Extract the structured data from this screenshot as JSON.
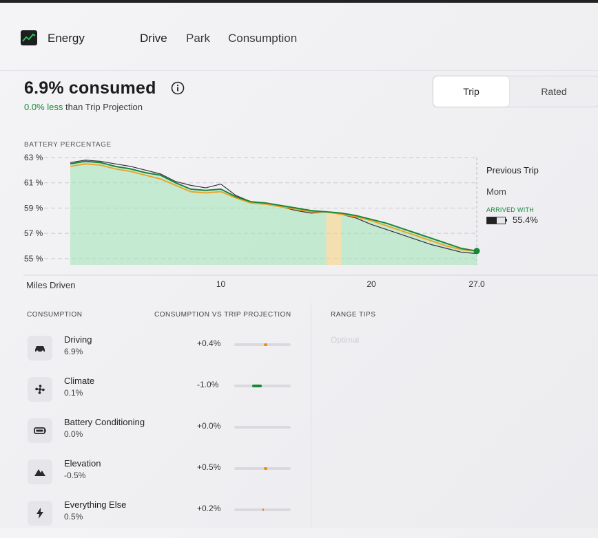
{
  "header": {
    "app_title": "Energy",
    "tabs": [
      {
        "label": "Drive",
        "active": true
      },
      {
        "label": "Park",
        "active": false
      },
      {
        "label": "Consumption",
        "active": false
      }
    ]
  },
  "summary": {
    "consumed": "6.9% consumed",
    "delta_value": "0.0% less",
    "delta_suffix": "than Trip Projection"
  },
  "segmented": {
    "trip": "Trip",
    "rated": "Rated"
  },
  "chart": {
    "title": "BATTERY PERCENTAGE",
    "y_ticks": [
      "63 %",
      "61 %",
      "59 %",
      "57 %",
      "55 %"
    ],
    "x_axis_label": "Miles Driven",
    "x_ticks": [
      "10",
      "20",
      "27.0"
    ],
    "legend": {
      "title": "Previous Trip",
      "destination": "Mom",
      "arrived_label": "ARRIVED WITH",
      "arrived_value": "55.4%",
      "battery_level": 0.55
    },
    "colors": {
      "actual": "#17873a",
      "projection_high": "#f0a020",
      "previous": "#3a2d3f",
      "fill_over": "#f7d27a",
      "fill_under": "#9ee3b4"
    }
  },
  "chart_data": {
    "type": "line",
    "xlabel": "Miles Driven",
    "ylabel": "BATTERY PERCENTAGE",
    "xlim": [
      0,
      27.0
    ],
    "ylim": [
      54.5,
      63
    ],
    "series": [
      {
        "name": "",
        "kind": "actual",
        "x": [
          0,
          1,
          2,
          3,
          4,
          5,
          6,
          7,
          8,
          9,
          10,
          11,
          12,
          13,
          14,
          15,
          16,
          17,
          18,
          19,
          20,
          21,
          22,
          23,
          24,
          25,
          26,
          27.0
        ],
        "y": [
          62.5,
          62.7,
          62.6,
          62.3,
          62.1,
          61.8,
          61.6,
          61.0,
          60.5,
          60.4,
          60.5,
          59.9,
          59.5,
          59.4,
          59.2,
          59.0,
          58.8,
          58.7,
          58.6,
          58.4,
          58.1,
          57.8,
          57.4,
          57.0,
          56.6,
          56.2,
          55.8,
          55.6
        ]
      },
      {
        "name": "",
        "kind": "previous",
        "x": [
          0,
          1,
          2,
          3,
          4,
          5,
          6,
          7,
          8,
          9,
          10,
          11,
          12,
          13,
          14,
          15,
          16,
          17,
          18,
          19,
          20,
          21,
          22,
          23,
          24,
          25,
          26,
          27.0
        ],
        "y": [
          62.6,
          62.8,
          62.7,
          62.5,
          62.3,
          62.0,
          61.7,
          61.1,
          60.8,
          60.6,
          60.9,
          60.0,
          59.5,
          59.3,
          59.1,
          58.8,
          58.6,
          58.7,
          58.5,
          58.2,
          57.7,
          57.3,
          56.9,
          56.5,
          56.1,
          55.8,
          55.5,
          55.4
        ]
      },
      {
        "name": "",
        "kind": "projection",
        "x": [
          0,
          1,
          2,
          3,
          4,
          5,
          6,
          7,
          8,
          9,
          10,
          11,
          12,
          13,
          14,
          15,
          16,
          17,
          18,
          19,
          20,
          21,
          22,
          23,
          24,
          25,
          26,
          27.0
        ],
        "y": [
          62.3,
          62.5,
          62.4,
          62.1,
          61.9,
          61.6,
          61.3,
          60.8,
          60.3,
          60.2,
          60.3,
          59.8,
          59.4,
          59.3,
          59.1,
          58.9,
          58.7,
          58.7,
          58.5,
          58.3,
          58.0,
          57.6,
          57.2,
          56.8,
          56.4,
          56.0,
          55.7,
          55.6
        ]
      }
    ]
  },
  "consumption": {
    "header_left": "CONSUMPTION",
    "header_mid": "CONSUMPTION VS TRIP PROJECTION",
    "header_right": "RANGE TIPS",
    "tips_sub": "Optimal",
    "rows": [
      {
        "label": "Driving",
        "value": "6.9%",
        "delta": "+0.4%",
        "icon": "car-icon",
        "bar_pos": 0.52,
        "bar_w": 0.06,
        "bar_color": "#f08a1e"
      },
      {
        "label": "Climate",
        "value": "0.1%",
        "delta": "-1.0%",
        "icon": "fan-icon",
        "bar_pos": 0.32,
        "bar_w": 0.17,
        "bar_color": "#17873a"
      },
      {
        "label": "Battery Conditioning",
        "value": "0.0%",
        "delta": "+0.0%",
        "icon": "battery-icon",
        "bar_pos": 0.5,
        "bar_w": 0.0,
        "bar_color": "#f08a1e"
      },
      {
        "label": "Elevation",
        "value": "-0.5%",
        "delta": "+0.5%",
        "icon": "mountain-icon",
        "bar_pos": 0.52,
        "bar_w": 0.07,
        "bar_color": "#f08a1e"
      },
      {
        "label": "Everything Else",
        "value": "0.5%",
        "delta": "+0.2%",
        "icon": "bolt-icon",
        "bar_pos": 0.5,
        "bar_w": 0.025,
        "bar_color": "#f08a1e"
      }
    ]
  }
}
